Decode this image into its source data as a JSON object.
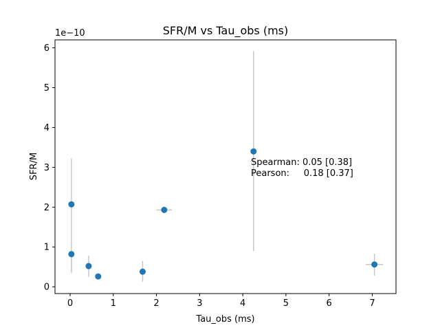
{
  "chart_data": {
    "type": "scatter",
    "title": "SFR/M vs Tau_obs (ms)",
    "xlabel": "Tau_obs (ms)",
    "ylabel": "SFR/M",
    "y_multiplier_label": "1e−10",
    "xlim": [
      -0.35,
      7.55
    ],
    "ylim": [
      -0.17,
      6.2
    ],
    "xticks": [
      0,
      1,
      2,
      3,
      4,
      5,
      6,
      7
    ],
    "yticks": [
      0,
      1,
      2,
      3,
      4,
      5,
      6
    ],
    "grid": false,
    "marker_color": "#1f77b4",
    "errorbar_color": "#c8c8c8",
    "points": [
      {
        "x": 0.03,
        "y": 2.07,
        "y_lo": 0.35,
        "y_hi": 3.22
      },
      {
        "x": 0.03,
        "y": 0.82,
        "y_lo": 0.35,
        "y_hi": 0.82
      },
      {
        "x": 0.43,
        "y": 0.52,
        "y_lo": 0.25,
        "y_hi": 0.78
      },
      {
        "x": 0.65,
        "y": 0.26,
        "y_lo": 0.2,
        "y_hi": 0.32,
        "x_lo": 0.6,
        "x_hi": 0.72
      },
      {
        "x": 1.68,
        "y": 0.38,
        "y_lo": 0.13,
        "y_hi": 0.65
      },
      {
        "x": 2.18,
        "y": 1.93,
        "y_lo": 1.85,
        "y_hi": 2.02,
        "x_lo": 2.0,
        "x_hi": 2.36
      },
      {
        "x": 4.25,
        "y": 3.4,
        "y_lo": 0.9,
        "y_hi": 5.92
      },
      {
        "x": 7.05,
        "y": 0.56,
        "y_lo": 0.28,
        "y_hi": 0.83,
        "x_lo": 6.85,
        "x_hi": 7.25
      }
    ],
    "annotations": [
      {
        "text": "Spearman: 0.05 [0.38]"
      },
      {
        "text": "Pearson:     0.18 [0.37]"
      }
    ]
  }
}
